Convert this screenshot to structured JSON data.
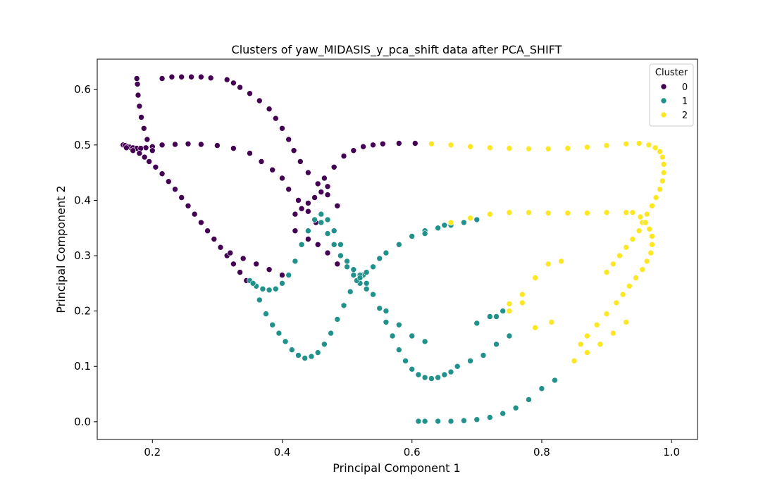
{
  "chart_data": {
    "type": "scatter",
    "title": "Clusters of yaw_MIDASIS_y_pca_shift data after PCA_SHIFT",
    "xlabel": "Principal Component 1",
    "ylabel": "Principal Component 2",
    "xlim": [
      0.115,
      1.04
    ],
    "ylim": [
      -0.032,
      0.655
    ],
    "xticks": [
      0.2,
      0.4,
      0.6,
      0.8,
      1.0
    ],
    "xtick_labels": [
      "0.2",
      "0.4",
      "0.6",
      "0.8",
      "1.0"
    ],
    "yticks": [
      0.0,
      0.1,
      0.2,
      0.3,
      0.4,
      0.5,
      0.6
    ],
    "ytick_labels": [
      "0.0",
      "0.1",
      "0.2",
      "0.3",
      "0.4",
      "0.5",
      "0.6"
    ],
    "grid": false,
    "legend": {
      "title": "Cluster",
      "position": "upper right"
    },
    "series": [
      {
        "name": "0",
        "color": "#440154",
        "x": [
          0.155,
          0.158,
          0.162,
          0.165,
          0.17,
          0.176,
          0.182,
          0.19,
          0.2,
          0.215,
          0.235,
          0.255,
          0.275,
          0.3,
          0.325,
          0.35,
          0.368,
          0.385,
          0.4,
          0.41,
          0.425,
          0.44,
          0.452,
          0.465,
          0.48,
          0.495,
          0.51,
          0.525,
          0.54,
          0.555,
          0.58,
          0.605,
          0.176,
          0.177,
          0.178,
          0.18,
          0.183,
          0.187,
          0.192,
          0.2,
          0.215,
          0.23,
          0.245,
          0.26,
          0.275,
          0.29,
          0.315,
          0.325,
          0.335,
          0.35,
          0.365,
          0.38,
          0.39,
          0.4,
          0.41,
          0.418,
          0.428,
          0.44,
          0.455,
          0.47,
          0.485,
          0.16,
          0.17,
          0.18,
          0.188,
          0.195,
          0.205,
          0.215,
          0.225,
          0.235,
          0.245,
          0.255,
          0.265,
          0.275,
          0.285,
          0.295,
          0.305,
          0.315,
          0.325,
          0.335,
          0.345,
          0.32,
          0.34,
          0.36,
          0.38,
          0.4,
          0.42,
          0.44,
          0.455,
          0.47,
          0.485,
          0.42,
          0.43,
          0.44,
          0.45,
          0.46,
          0.47
        ],
        "y": [
          0.5,
          0.499,
          0.497,
          0.496,
          0.495,
          0.494,
          0.494,
          0.495,
          0.497,
          0.5,
          0.501,
          0.502,
          0.501,
          0.499,
          0.494,
          0.485,
          0.47,
          0.455,
          0.44,
          0.42,
          0.4,
          0.38,
          0.36,
          0.44,
          0.46,
          0.48,
          0.49,
          0.497,
          0.5,
          0.502,
          0.503,
          0.503,
          0.62,
          0.61,
          0.59,
          0.57,
          0.55,
          0.53,
          0.51,
          0.49,
          0.62,
          0.623,
          0.623,
          0.623,
          0.623,
          0.621,
          0.618,
          0.612,
          0.604,
          0.593,
          0.58,
          0.565,
          0.548,
          0.53,
          0.51,
          0.49,
          0.47,
          0.45,
          0.43,
          0.41,
          0.39,
          0.495,
          0.49,
          0.485,
          0.478,
          0.47,
          0.46,
          0.448,
          0.434,
          0.42,
          0.405,
          0.39,
          0.375,
          0.36,
          0.345,
          0.33,
          0.315,
          0.3,
          0.285,
          0.27,
          0.255,
          0.305,
          0.295,
          0.285,
          0.275,
          0.265,
          0.345,
          0.33,
          0.32,
          0.305,
          0.285,
          0.375,
          0.385,
          0.395,
          0.405,
          0.415,
          0.425
        ]
      },
      {
        "name": "1",
        "color": "#21918c",
        "x": [
          0.35,
          0.36,
          0.37,
          0.38,
          0.39,
          0.4,
          0.41,
          0.42,
          0.43,
          0.44,
          0.45,
          0.46,
          0.47,
          0.48,
          0.49,
          0.5,
          0.51,
          0.52,
          0.53,
          0.54,
          0.56,
          0.58,
          0.6,
          0.62,
          0.355,
          0.365,
          0.375,
          0.385,
          0.395,
          0.405,
          0.415,
          0.425,
          0.435,
          0.445,
          0.455,
          0.465,
          0.475,
          0.485,
          0.495,
          0.505,
          0.515,
          0.525,
          0.5,
          0.51,
          0.52,
          0.53,
          0.54,
          0.55,
          0.56,
          0.57,
          0.58,
          0.59,
          0.6,
          0.61,
          0.62,
          0.63,
          0.64,
          0.65,
          0.66,
          0.67,
          0.69,
          0.71,
          0.73,
          0.75,
          0.46,
          0.47,
          0.48,
          0.49,
          0.5,
          0.51,
          0.52,
          0.53,
          0.54,
          0.55,
          0.56,
          0.58,
          0.6,
          0.62,
          0.64,
          0.66,
          0.68,
          0.7,
          0.72,
          0.74,
          0.61,
          0.62,
          0.64,
          0.66,
          0.68,
          0.7,
          0.72,
          0.74,
          0.76,
          0.78,
          0.8,
          0.82,
          0.62,
          0.65,
          0.7,
          0.73
        ],
        "y": [
          0.255,
          0.245,
          0.24,
          0.238,
          0.24,
          0.25,
          0.265,
          0.29,
          0.32,
          0.345,
          0.365,
          0.375,
          0.365,
          0.345,
          0.32,
          0.29,
          0.265,
          0.25,
          0.24,
          0.23,
          0.2,
          0.175,
          0.155,
          0.145,
          0.25,
          0.22,
          0.195,
          0.175,
          0.16,
          0.145,
          0.13,
          0.12,
          0.115,
          0.118,
          0.125,
          0.14,
          0.16,
          0.185,
          0.21,
          0.235,
          0.255,
          0.265,
          0.28,
          0.275,
          0.265,
          0.25,
          0.23,
          0.205,
          0.18,
          0.155,
          0.13,
          0.11,
          0.095,
          0.085,
          0.08,
          0.078,
          0.08,
          0.085,
          0.09,
          0.1,
          0.11,
          0.12,
          0.14,
          0.155,
          0.36,
          0.34,
          0.32,
          0.3,
          0.28,
          0.265,
          0.26,
          0.27,
          0.28,
          0.295,
          0.305,
          0.32,
          0.335,
          0.345,
          0.35,
          0.355,
          0.36,
          0.365,
          0.19,
          0.2,
          0.001,
          0.001,
          0.001,
          0.001,
          0.002,
          0.004,
          0.008,
          0.015,
          0.025,
          0.04,
          0.06,
          0.075,
          0.34,
          0.355,
          0.178,
          0.19
        ]
      },
      {
        "name": "2",
        "color": "#fde725",
        "x": [
          0.63,
          0.66,
          0.69,
          0.72,
          0.75,
          0.78,
          0.81,
          0.84,
          0.87,
          0.9,
          0.93,
          0.95,
          0.965,
          0.975,
          0.982,
          0.986,
          0.988,
          0.988,
          0.986,
          0.982,
          0.976,
          0.97,
          0.962,
          0.955,
          0.95,
          0.94,
          0.93,
          0.92,
          0.91,
          0.9,
          0.94,
          0.952,
          0.96,
          0.966,
          0.97,
          0.97,
          0.968,
          0.962,
          0.955,
          0.945,
          0.935,
          0.925,
          0.915,
          0.9,
          0.885,
          0.87,
          0.86,
          0.66,
          0.69,
          0.72,
          0.75,
          0.78,
          0.81,
          0.84,
          0.87,
          0.9,
          0.93,
          0.75,
          0.77,
          0.79,
          0.81,
          0.83,
          0.85,
          0.87,
          0.89,
          0.91,
          0.93,
          0.75,
          0.77,
          0.79,
          0.815
        ],
        "y": [
          0.502,
          0.5,
          0.497,
          0.495,
          0.494,
          0.493,
          0.493,
          0.494,
          0.496,
          0.499,
          0.502,
          0.503,
          0.5,
          0.495,
          0.488,
          0.478,
          0.465,
          0.45,
          0.435,
          0.42,
          0.405,
          0.39,
          0.375,
          0.36,
          0.345,
          0.33,
          0.315,
          0.3,
          0.285,
          0.27,
          0.378,
          0.37,
          0.36,
          0.348,
          0.335,
          0.32,
          0.305,
          0.29,
          0.275,
          0.26,
          0.245,
          0.23,
          0.215,
          0.195,
          0.175,
          0.155,
          0.14,
          0.36,
          0.368,
          0.375,
          0.378,
          0.378,
          0.377,
          0.377,
          0.377,
          0.378,
          0.378,
          0.213,
          0.23,
          0.26,
          0.285,
          0.29,
          0.11,
          0.125,
          0.14,
          0.16,
          0.18,
          0.2,
          0.215,
          0.17,
          0.18
        ]
      }
    ]
  }
}
